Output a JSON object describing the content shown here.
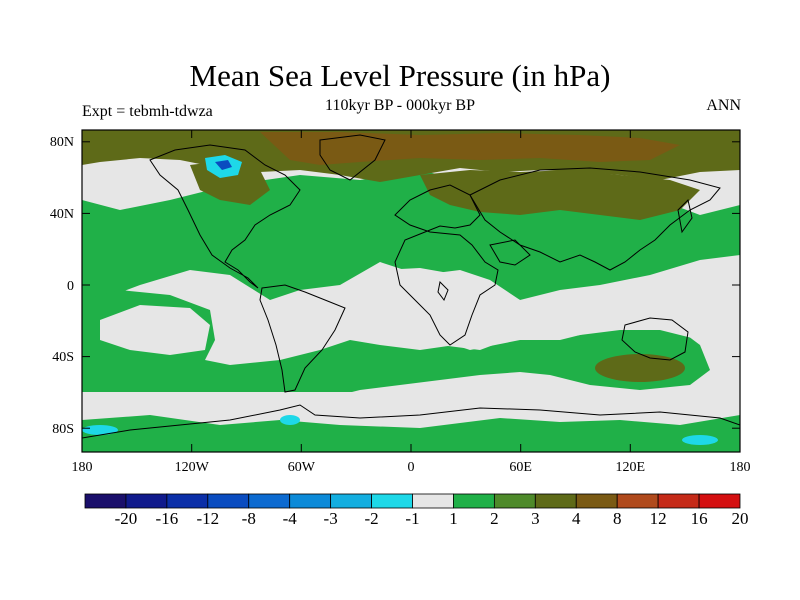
{
  "title": "Mean Sea Level Pressure (in hPa)",
  "subtitle": "110kyr BP - 000kyr BP",
  "left_label": "Expt = tebmh-tdwza",
  "right_label": "ANN",
  "y_ticks": [
    "80N",
    "40N",
    "0",
    "40S",
    "80S"
  ],
  "x_ticks": [
    "180",
    "120W",
    "60W",
    "0",
    "60E",
    "120E",
    "180"
  ],
  "colorbar": {
    "labels": [
      "-20",
      "-16",
      "-12",
      "-8",
      "-4",
      "-3",
      "-2",
      "-1",
      "1",
      "2",
      "3",
      "4",
      "8",
      "12",
      "16",
      "20"
    ],
    "colors": [
      "#1a0f6b",
      "#101a8c",
      "#0b2fa8",
      "#0a4cc0",
      "#0c6ad0",
      "#0c8ad8",
      "#13aee0",
      "#1ed8e8",
      "#e6e6e6",
      "#20b048",
      "#4e8a2a",
      "#5e6a18",
      "#7a5a14",
      "#b04a1c",
      "#c52a18",
      "#d40f10"
    ]
  },
  "colors": {
    "background": "#e6e6e6",
    "green": "#20b048",
    "olive": "#5e6a18",
    "brown": "#7a5a14",
    "cyan": "#1ed8e8",
    "blue": "#0a4cc0"
  }
}
